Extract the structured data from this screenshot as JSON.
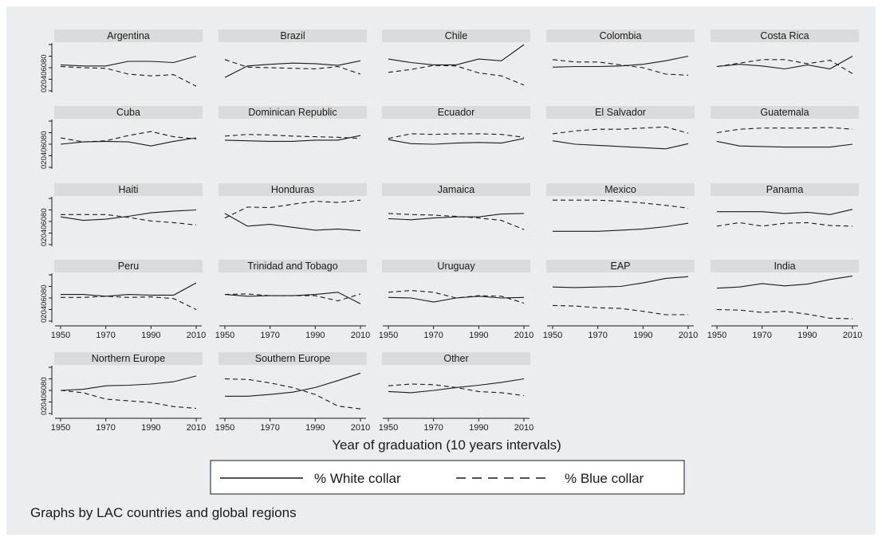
{
  "figure": {
    "background_color": "#eaeef0",
    "strip_color": "#d9dbdc",
    "line_color": "#1a1a1a"
  },
  "chart_data": {
    "type": "line",
    "layout": "small multiples (trellis)",
    "xlabel": "Year of graduation (10 years intervals)",
    "x_ticks": [
      "1950",
      "1970",
      "1990",
      "2010"
    ],
    "y_ticks": [
      "0",
      "20",
      "40",
      "60",
      "80"
    ],
    "xlim": [
      1950,
      2010
    ],
    "ylim": [
      0,
      80
    ],
    "note": "Graphs by LAC countries and global regions",
    "legend": [
      {
        "label": "% White collar",
        "style": "solid"
      },
      {
        "label": "% Blue collar",
        "style": "dashed"
      }
    ],
    "x": [
      1950,
      1960,
      1970,
      1980,
      1990,
      2000,
      2010
    ],
    "panels": [
      {
        "name": "Argentina",
        "white": [
          45,
          43,
          43,
          51,
          51,
          49,
          60
        ],
        "blue": [
          42,
          40,
          39,
          29,
          26,
          28,
          8
        ]
      },
      {
        "name": "Brazil",
        "white": [
          23,
          43,
          46,
          48,
          47,
          44,
          52
        ],
        "blue": [
          54,
          41,
          40,
          39,
          38,
          42,
          29
        ]
      },
      {
        "name": "Chile",
        "white": [
          55,
          49,
          45,
          45,
          55,
          52,
          80
        ],
        "blue": [
          32,
          37,
          44,
          43,
          31,
          26,
          10
        ]
      },
      {
        "name": "Colombia",
        "white": [
          41,
          42,
          42,
          43,
          46,
          52,
          60
        ],
        "blue": [
          54,
          50,
          50,
          45,
          40,
          29,
          27
        ]
      },
      {
        "name": "Costa Rica",
        "white": [
          42,
          46,
          43,
          38,
          45,
          38,
          60
        ],
        "blue": [
          42,
          48,
          54,
          54,
          47,
          53,
          30
        ]
      },
      {
        "name": "Cuba",
        "white": [
          40,
          44,
          45,
          44,
          37,
          45,
          51
        ],
        "blue": [
          51,
          44,
          46,
          55,
          62,
          53,
          49
        ]
      },
      {
        "name": "Dominican Republic",
        "white": [
          47,
          46,
          45,
          45,
          47,
          47,
          55
        ],
        "blue": [
          54,
          57,
          56,
          54,
          53,
          52,
          50
        ]
      },
      {
        "name": "Ecuador",
        "white": [
          48,
          41,
          40,
          42,
          43,
          42,
          50
        ],
        "blue": [
          50,
          58,
          57,
          58,
          58,
          57,
          52
        ]
      },
      {
        "name": "El Salvador",
        "white": [
          46,
          40,
          38,
          36,
          34,
          32,
          41
        ],
        "blue": [
          58,
          63,
          66,
          66,
          68,
          70,
          59
        ]
      },
      {
        "name": "Guatemala",
        "white": [
          45,
          37,
          36,
          35,
          35,
          35,
          40
        ],
        "blue": [
          60,
          66,
          68,
          68,
          68,
          69,
          66
        ]
      },
      {
        "name": "Haiti",
        "white": [
          48,
          42,
          44,
          49,
          55,
          58,
          60
        ],
        "blue": [
          52,
          52,
          52,
          47,
          41,
          38,
          34
        ]
      },
      {
        "name": "Honduras",
        "white": [
          54,
          32,
          35,
          30,
          25,
          27,
          24
        ],
        "blue": [
          46,
          65,
          64,
          70,
          75,
          73,
          77
        ]
      },
      {
        "name": "Jamaica",
        "white": [
          45,
          43,
          46,
          48,
          48,
          53,
          54
        ],
        "blue": [
          54,
          52,
          51,
          49,
          46,
          42,
          26
        ]
      },
      {
        "name": "Mexico",
        "white": [
          23,
          23,
          23,
          25,
          27,
          31,
          37
        ],
        "blue": [
          77,
          77,
          77,
          75,
          72,
          68,
          63
        ]
      },
      {
        "name": "Panama",
        "white": [
          57,
          57,
          57,
          54,
          56,
          52,
          61
        ],
        "blue": [
          32,
          38,
          32,
          37,
          38,
          33,
          32
        ]
      },
      {
        "name": "Peru",
        "white": [
          46,
          46,
          43,
          46,
          45,
          45,
          66
        ],
        "blue": [
          41,
          41,
          43,
          41,
          42,
          39,
          20
        ]
      },
      {
        "name": "Trinidad and Tobago",
        "white": [
          46,
          43,
          44,
          44,
          46,
          50,
          30
        ],
        "blue": [
          46,
          47,
          44,
          44,
          44,
          35,
          47
        ]
      },
      {
        "name": "Uruguay",
        "white": [
          41,
          40,
          33,
          40,
          43,
          40,
          41
        ],
        "blue": [
          50,
          53,
          50,
          40,
          44,
          43,
          31
        ]
      },
      {
        "name": "EAP",
        "white": [
          59,
          58,
          59,
          60,
          66,
          74,
          77
        ],
        "blue": [
          27,
          26,
          23,
          22,
          17,
          11,
          11
        ]
      },
      {
        "name": "India",
        "white": [
          57,
          59,
          65,
          61,
          64,
          72,
          78
        ],
        "blue": [
          20,
          19,
          15,
          17,
          12,
          5,
          4
        ]
      },
      {
        "name": "Northern Europe",
        "white": [
          40,
          42,
          48,
          49,
          51,
          55,
          65
        ],
        "blue": [
          40,
          36,
          25,
          22,
          19,
          12,
          9
        ]
      },
      {
        "name": "Southern Europe",
        "white": [
          30,
          30,
          33,
          37,
          45,
          57,
          70
        ],
        "blue": [
          60,
          59,
          53,
          45,
          33,
          13,
          8
        ]
      },
      {
        "name": "Other",
        "white": [
          38,
          36,
          40,
          45,
          49,
          54,
          60
        ],
        "blue": [
          48,
          51,
          50,
          45,
          38,
          36,
          31
        ]
      }
    ]
  }
}
